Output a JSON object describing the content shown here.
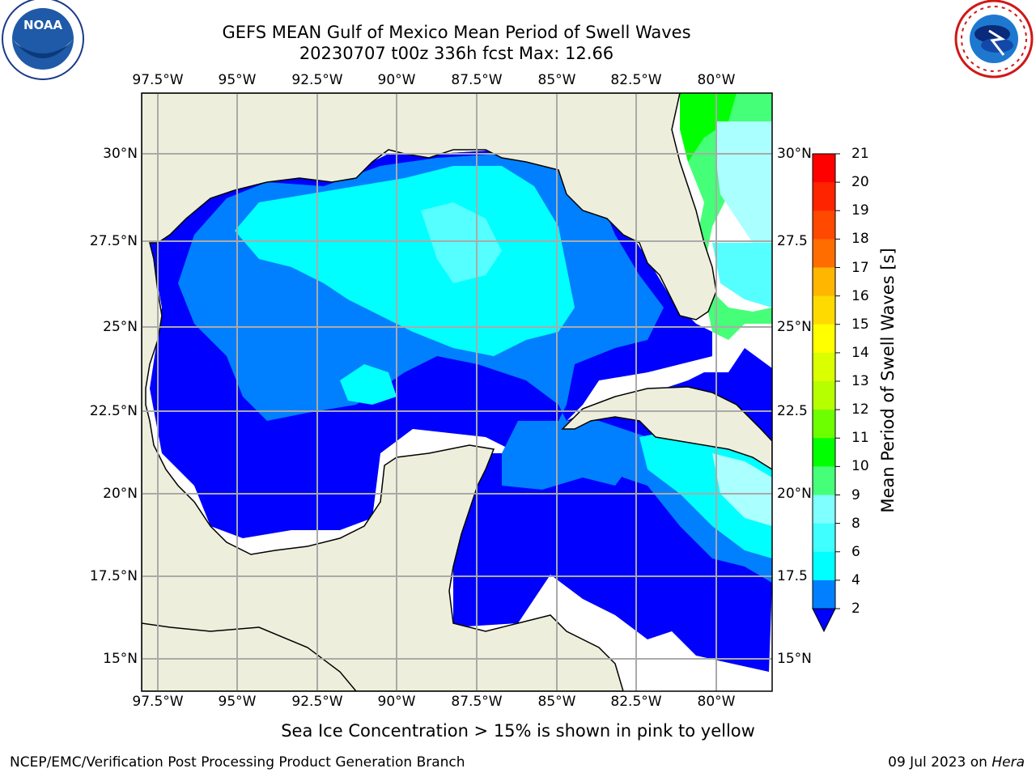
{
  "title_line1": "GEFS MEAN Gulf of Mexico Mean Period of Swell Waves",
  "title_line2": "20230707 t00z 336h fcst   Max: 12.66",
  "logos": {
    "left": {
      "name": "noaa-logo",
      "text": "NOAA",
      "ring_text": "NATIONAL OCEANIC AND ATMOSPHERIC ADMINISTRATION · U.S. DEPARTMENT OF COMMERCE"
    },
    "right": {
      "name": "nws-logo",
      "ring_text": "NATIONAL WEATHER SERVICE"
    }
  },
  "lon_labels": [
    "97.5°W",
    "95°W",
    "92.5°W",
    "90°W",
    "87.5°W",
    "85°W",
    "82.5°W",
    "80°W"
  ],
  "lat_labels_left": [
    "30°N",
    "27.5°N",
    "25°N",
    "22.5°N",
    "20°N",
    "17.5°N",
    "15°N"
  ],
  "lat_labels_right": [
    "30°N",
    "27.5",
    "25°N",
    "22.5",
    "20°N",
    "17.5",
    "15°N"
  ],
  "colorbar": {
    "title": "Mean Period of Swell Waves [s]",
    "ticks": [
      "21",
      "20",
      "19",
      "18",
      "17",
      "16",
      "15",
      "14",
      "13",
      "12",
      "11",
      "10",
      "9",
      "8",
      "6",
      "4",
      "2"
    ],
    "colors": [
      "#ff0000",
      "#ff2400",
      "#ff4800",
      "#ff6d00",
      "#ff9100",
      "#ffb600",
      "#ffda00",
      "#ffff00",
      "#daff00",
      "#b6ff00",
      "#6dff00",
      "#00ff00",
      "#46ff78",
      "#aaffff",
      "#7fffff",
      "#40ffff",
      "#00ffff",
      "#0080ff",
      "#0000ff"
    ]
  },
  "colors": {
    "land": "#eeeedc",
    "period_2_4": "#0000ff",
    "period_4_6": "#0080ff",
    "period_6_8": "#00ffff",
    "period_8_9": "#55ffff",
    "period_9_10": "#aaffff",
    "period_10_11": "#46ff78",
    "period_11_12": "#00ff00",
    "grid": "#aaaaaa"
  },
  "ice_note": "Sea Ice Concentration > 15% is shown in pink to yellow",
  "footer_left": "NCEP/EMC/Verification Post Processing Product Generation Branch",
  "footer_right_prefix": "09 Jul 2023 on ",
  "footer_right_host": "Hera"
}
